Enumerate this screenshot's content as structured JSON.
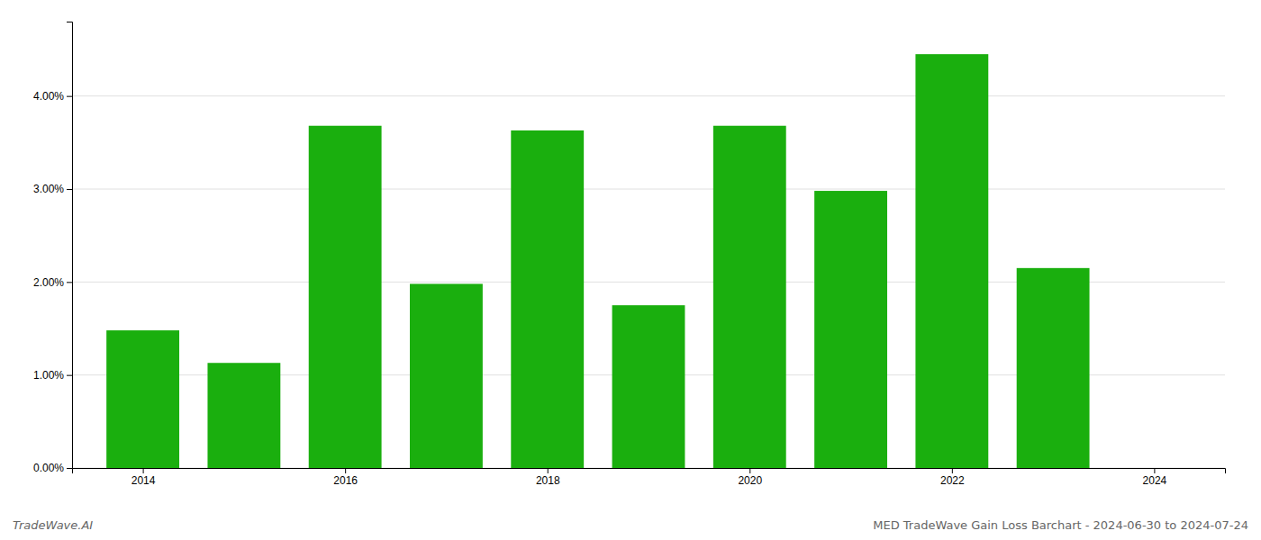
{
  "chart_data": {
    "type": "bar",
    "title": "MED TradeWave Gain Loss Barchart - 2024-06-30 to 2024-07-24",
    "annotations": [
      "TradeWave.AI"
    ],
    "x": [
      2014,
      2015,
      2016,
      2017,
      2018,
      2019,
      2020,
      2021,
      2022,
      2023
    ],
    "values": [
      0.0148,
      0.0113,
      0.0368,
      0.0198,
      0.0363,
      0.0175,
      0.0368,
      0.0298,
      0.0445,
      0.0215
    ],
    "color": "#1aaf0e",
    "xlim": [
      2013.3,
      2024.7
    ],
    "xticks": [
      2014,
      2016,
      2018,
      2020,
      2022,
      2024
    ],
    "ylim": [
      0.0,
      0.048
    ],
    "yticks": [
      {
        "value": 0.0,
        "label": "0.00%"
      },
      {
        "value": 0.01,
        "label": "1.00%"
      },
      {
        "value": 0.02,
        "label": "2.00%"
      },
      {
        "value": 0.03,
        "label": "3.00%"
      },
      {
        "value": 0.04,
        "label": "4.00%"
      }
    ],
    "grid": true
  }
}
